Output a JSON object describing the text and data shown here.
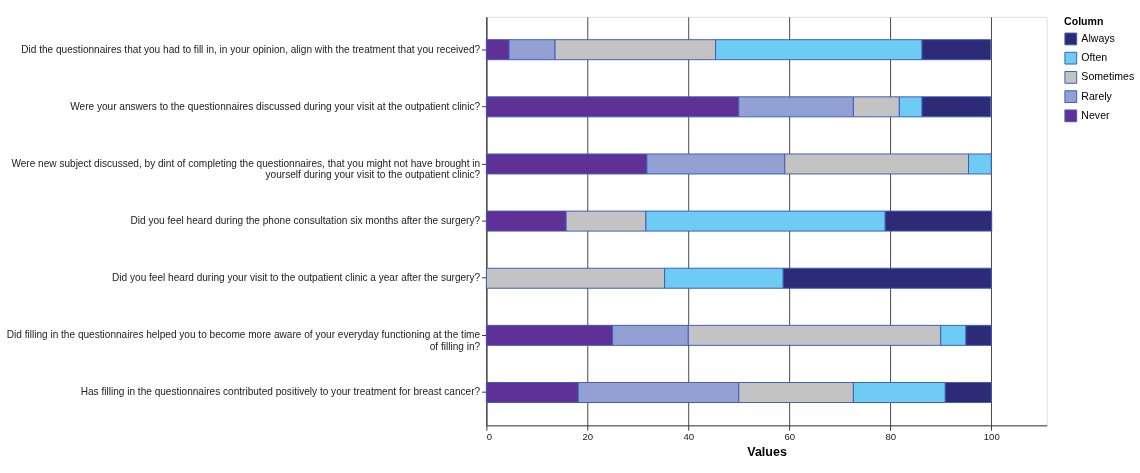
{
  "chart_data": {
    "type": "bar",
    "orientation": "horizontal",
    "stacked": true,
    "categories": [
      "Did the questionnaires that you had to fill in, in your opinion, align with the treatment that you received?",
      "Were your answers to the questionnaires discussed during your visit at the outpatient clinic?",
      "Were new subject discussed, by dint of completing the questionnaires, that you might not have brought in\nyourself during your visit to the outpatient clinic?",
      "Did you feel heard during the phone consultation six months after the surgery?",
      "Did you feel heard during your visit to the outpatient clinic a year after the surgery?",
      "Did filling in the questionnaires helped you to become more aware of your everyday functioning at the time\nof filling in?",
      "Has filling in the questionnaires contributed positively to your treatment for breast cancer?"
    ],
    "series": [
      {
        "name": "Never",
        "color": "#5f3096",
        "values": [
          4.5,
          50,
          31.8,
          15.8,
          null,
          25,
          18.2
        ]
      },
      {
        "name": "Rarely",
        "color": "#93a0d3",
        "values": [
          9.1,
          22.7,
          27.3,
          null,
          null,
          15,
          31.8
        ]
      },
      {
        "name": "Sometimes",
        "color": "#c3c3c3",
        "values": [
          31.8,
          9.1,
          36.4,
          15.8,
          35.3,
          50,
          22.7
        ]
      },
      {
        "name": "Often",
        "color": "#6ecbf3",
        "values": [
          40.9,
          4.5,
          4.5,
          47.4,
          23.5,
          5,
          18.2
        ]
      },
      {
        "name": "Always",
        "color": "#2d2a77",
        "values": [
          13.6,
          13.6,
          null,
          21.1,
          41.2,
          5,
          9.1
        ]
      }
    ],
    "xlabel": "Values",
    "legend_title": "Column",
    "legend": "top right",
    "xlim": [
      0,
      111
    ],
    "xticks": [
      0,
      20,
      40,
      60,
      80,
      100
    ],
    "grid": "x"
  }
}
